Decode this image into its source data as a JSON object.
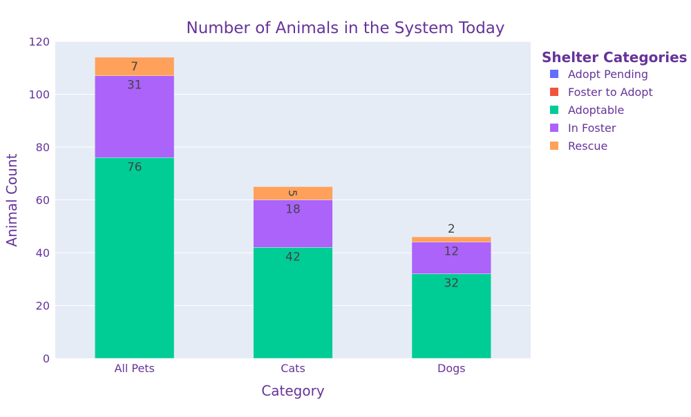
{
  "chart_data": {
    "type": "bar",
    "barmode": "stack",
    "title": "Number of Animals in the System Today",
    "xlabel": "Category",
    "ylabel": "Animal Count",
    "categories": [
      "All Pets",
      "Cats",
      "Dogs"
    ],
    "ylim": [
      0,
      120
    ],
    "yticks": [
      0,
      20,
      40,
      60,
      80,
      100,
      120
    ],
    "grid": true,
    "legend": {
      "title": "Shelter Categories",
      "placement": "right"
    },
    "series": [
      {
        "name": "Adopt Pending",
        "color": "#636efa",
        "values": [
          0,
          0,
          0
        ]
      },
      {
        "name": "Foster to Adopt",
        "color": "#ef553b",
        "values": [
          0,
          0,
          0
        ]
      },
      {
        "name": "Adoptable",
        "color": "#00cc96",
        "values": [
          76,
          42,
          32
        ]
      },
      {
        "name": "In Foster",
        "color": "#ab63fa",
        "values": [
          31,
          18,
          12
        ]
      },
      {
        "name": "Rescue",
        "color": "#ffa15a",
        "values": [
          7,
          5,
          2
        ]
      }
    ],
    "colors": {
      "text": "#663399",
      "plot_bg": "#e5ecf6",
      "grid": "#ffffff",
      "data_label": "#444444"
    }
  }
}
